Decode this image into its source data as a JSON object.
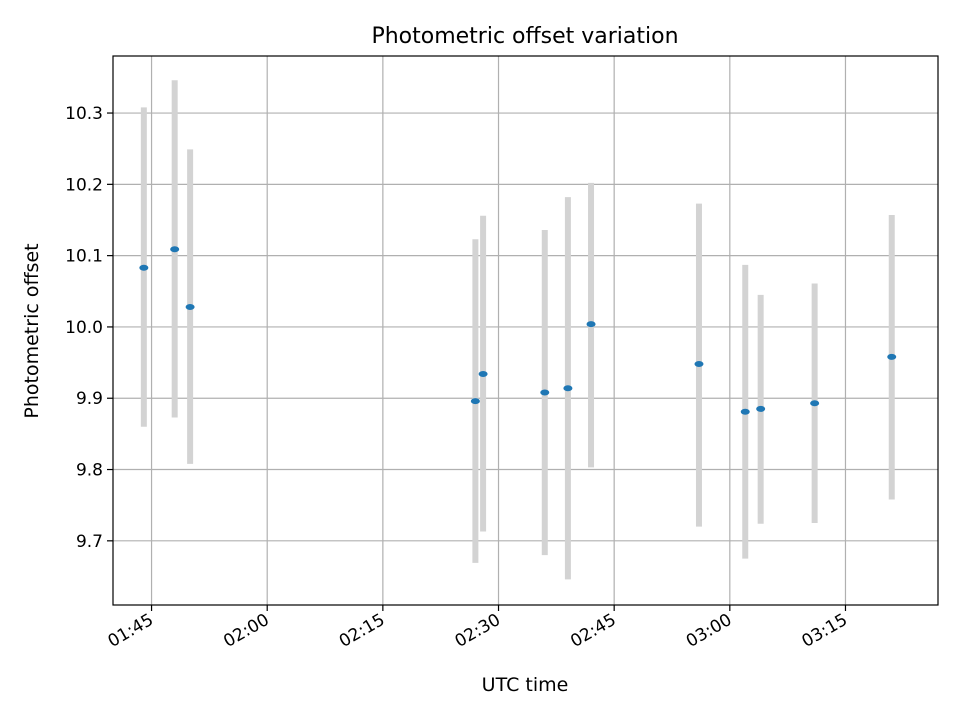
{
  "chart_data": {
    "type": "scatter",
    "title": "Photometric offset variation",
    "xlabel": "UTC time",
    "ylabel": "Photometric offset",
    "grid": true,
    "xlim": [
      "01:40",
      "03:27"
    ],
    "ylim": [
      9.61,
      10.38
    ],
    "xticks": [
      "01:45",
      "02:00",
      "02:15",
      "02:30",
      "02:45",
      "03:00",
      "03:15"
    ],
    "yticks": [
      "9.7",
      "9.8",
      "9.9",
      "10.0",
      "10.1",
      "10.2",
      "10.3"
    ],
    "colors": {
      "point": "#1f77b4",
      "errorbar": "#d3d3d3",
      "grid": "#b0b0b0"
    },
    "points": [
      {
        "x": "01:44",
        "y": 10.083,
        "yerr_low": 9.86,
        "yerr_high": 10.308
      },
      {
        "x": "01:48",
        "y": 10.109,
        "yerr_low": 9.873,
        "yerr_high": 10.346
      },
      {
        "x": "01:50",
        "y": 10.028,
        "yerr_low": 9.808,
        "yerr_high": 10.249
      },
      {
        "x": "02:27",
        "y": 9.896,
        "yerr_low": 9.669,
        "yerr_high": 10.123
      },
      {
        "x": "02:28",
        "y": 9.934,
        "yerr_low": 9.713,
        "yerr_high": 10.156
      },
      {
        "x": "02:36",
        "y": 9.908,
        "yerr_low": 9.68,
        "yerr_high": 10.136
      },
      {
        "x": "02:39",
        "y": 9.914,
        "yerr_low": 9.646,
        "yerr_high": 10.182
      },
      {
        "x": "02:42",
        "y": 10.004,
        "yerr_low": 9.803,
        "yerr_high": 10.202
      },
      {
        "x": "02:56",
        "y": 9.948,
        "yerr_low": 9.72,
        "yerr_high": 10.173
      },
      {
        "x": "03:02",
        "y": 9.881,
        "yerr_low": 9.675,
        "yerr_high": 10.087
      },
      {
        "x": "03:04",
        "y": 9.885,
        "yerr_low": 9.724,
        "yerr_high": 10.045
      },
      {
        "x": "03:11",
        "y": 9.893,
        "yerr_low": 9.725,
        "yerr_high": 10.061
      },
      {
        "x": "03:21",
        "y": 9.958,
        "yerr_low": 9.758,
        "yerr_high": 10.157
      }
    ]
  }
}
